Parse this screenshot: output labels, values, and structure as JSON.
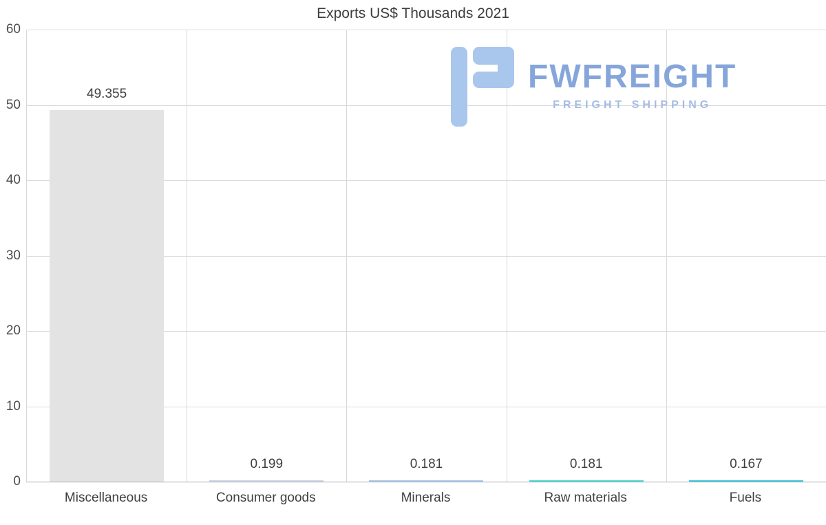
{
  "chart_data": {
    "type": "bar",
    "title": "Exports US$ Thousands 2021",
    "categories": [
      "Miscellaneous",
      "Consumer goods",
      "Minerals",
      "Raw materials",
      "Fuels"
    ],
    "values": [
      49.355,
      0.199,
      0.181,
      0.181,
      0.167
    ],
    "value_labels": [
      "49.355",
      "0.199",
      "0.181",
      "0.181",
      "0.167"
    ],
    "bar_colors": [
      "#e3e3e3",
      "#ccd6ea",
      "#a9c9ea",
      "#4ad9d2",
      "#3fc8de"
    ],
    "xlabel": "",
    "ylabel": "",
    "ylim": [
      0,
      60
    ],
    "yticks": [
      0,
      10,
      20,
      30,
      40,
      50,
      60
    ],
    "grid": "horizontal gridlines at each y tick, vertical gridlines between categories",
    "legend": "none"
  },
  "logo": {
    "main_text": "FWFREIGHT",
    "subtitle": "FREIGHT SHIPPING",
    "icon": "fwfreight-f-glyph",
    "icon_color": "#a9c6ec",
    "text_color": "#86a6db",
    "subtitle_color": "#a5bce4"
  },
  "colors": {
    "background": "#ffffff",
    "gridline": "#d9d9d9",
    "axis_line": "#a8a8a8",
    "title_text": "#3d3d3d",
    "tick_text": "#4c4c4c",
    "category_label_text": "#3f3f3f",
    "value_label_text": "#404040"
  }
}
